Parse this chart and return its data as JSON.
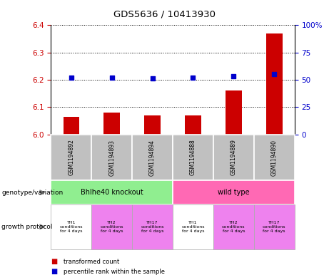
{
  "title": "GDS5636 / 10413930",
  "samples": [
    "GSM1194892",
    "GSM1194893",
    "GSM1194894",
    "GSM1194888",
    "GSM1194889",
    "GSM1194890"
  ],
  "transformed_counts": [
    6.065,
    6.08,
    6.07,
    6.07,
    6.16,
    6.37
  ],
  "percentile_ranks": [
    52,
    52,
    51,
    52,
    53,
    55
  ],
  "ylim_left": [
    6.0,
    6.4
  ],
  "ylim_right": [
    0,
    100
  ],
  "yticks_left": [
    6.0,
    6.1,
    6.2,
    6.3,
    6.4
  ],
  "yticks_right": [
    0,
    25,
    50,
    75,
    100
  ],
  "genotype_groups": [
    {
      "label": "Bhlhe40 knockout",
      "start": 0,
      "end": 3,
      "color": "#90EE90"
    },
    {
      "label": "wild type",
      "start": 3,
      "end": 6,
      "color": "#FF69B4"
    }
  ],
  "growth_protocols": [
    {
      "label": "TH1\nconditions\nfor 4 days",
      "color": "#FFFFFF"
    },
    {
      "label": "TH2\nconditions\nfor 4 days",
      "color": "#EE82EE"
    },
    {
      "label": "TH17\nconditions\nfor 4 days",
      "color": "#EE82EE"
    },
    {
      "label": "TH1\nconditions\nfor 4 days",
      "color": "#FFFFFF"
    },
    {
      "label": "TH2\nconditions\nfor 4 days",
      "color": "#EE82EE"
    },
    {
      "label": "TH17\nconditions\nfor 4 days",
      "color": "#EE82EE"
    }
  ],
  "bar_color": "#CC0000",
  "dot_color": "#0000CC",
  "bar_width": 0.4,
  "sample_bg_color": "#C0C0C0",
  "left_label_color": "#CC0000",
  "right_label_color": "#0000CC",
  "left_arrow_label": "genotype/variation",
  "right_arrow_label": "growth protocol",
  "legend_red": "transformed count",
  "legend_blue": "percentile rank within the sample"
}
